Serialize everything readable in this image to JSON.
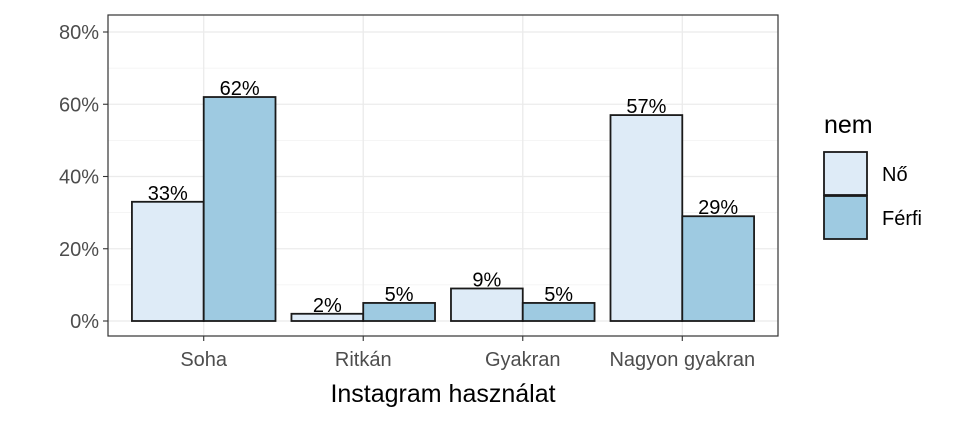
{
  "chart_data": {
    "type": "bar",
    "xlabel": "Instagram használat",
    "ylabel": "",
    "categories": [
      "Soha",
      "Ritkán",
      "Gyakran",
      "Nagyon gyakran"
    ],
    "ylim": [
      0,
      80
    ],
    "y_ticks": [
      "0%",
      "20%",
      "40%",
      "60%",
      "80%"
    ],
    "grid": true,
    "legend": {
      "title": "nem",
      "position": "right"
    },
    "series": [
      {
        "name": "Nő",
        "values": [
          33,
          2,
          9,
          57
        ],
        "labels": [
          "33%",
          "2%",
          "9%",
          "57%"
        ],
        "color": "#deebf7"
      },
      {
        "name": "Férfi",
        "values": [
          62,
          5,
          5,
          29
        ],
        "labels": [
          "62%",
          "5%",
          "5%",
          "29%"
        ],
        "color": "#9ecae1"
      }
    ]
  }
}
